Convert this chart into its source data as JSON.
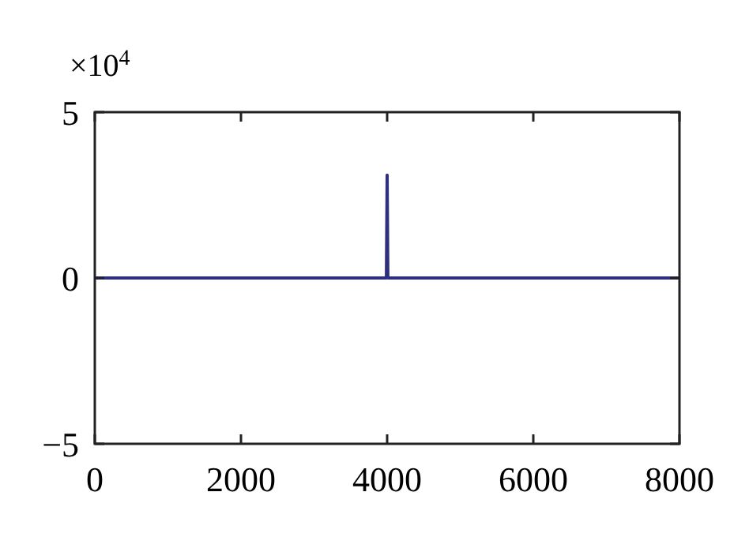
{
  "chart_data": {
    "type": "line",
    "x": [
      0,
      3990,
      4000,
      4010,
      8000
    ],
    "series": [
      {
        "color": "#2e2f7e",
        "values": [
          0,
          0,
          3.1,
          0,
          0
        ]
      }
    ],
    "xlim": [
      0,
      8000
    ],
    "xticks": [
      0,
      2000,
      4000,
      6000,
      8000
    ],
    "ylim": [
      -5,
      5
    ],
    "yticks": [
      -5,
      0,
      5
    ],
    "annotations": [
      "×10$^{4}$"
    ],
    "marker": "none",
    "line_style": "solid"
  }
}
